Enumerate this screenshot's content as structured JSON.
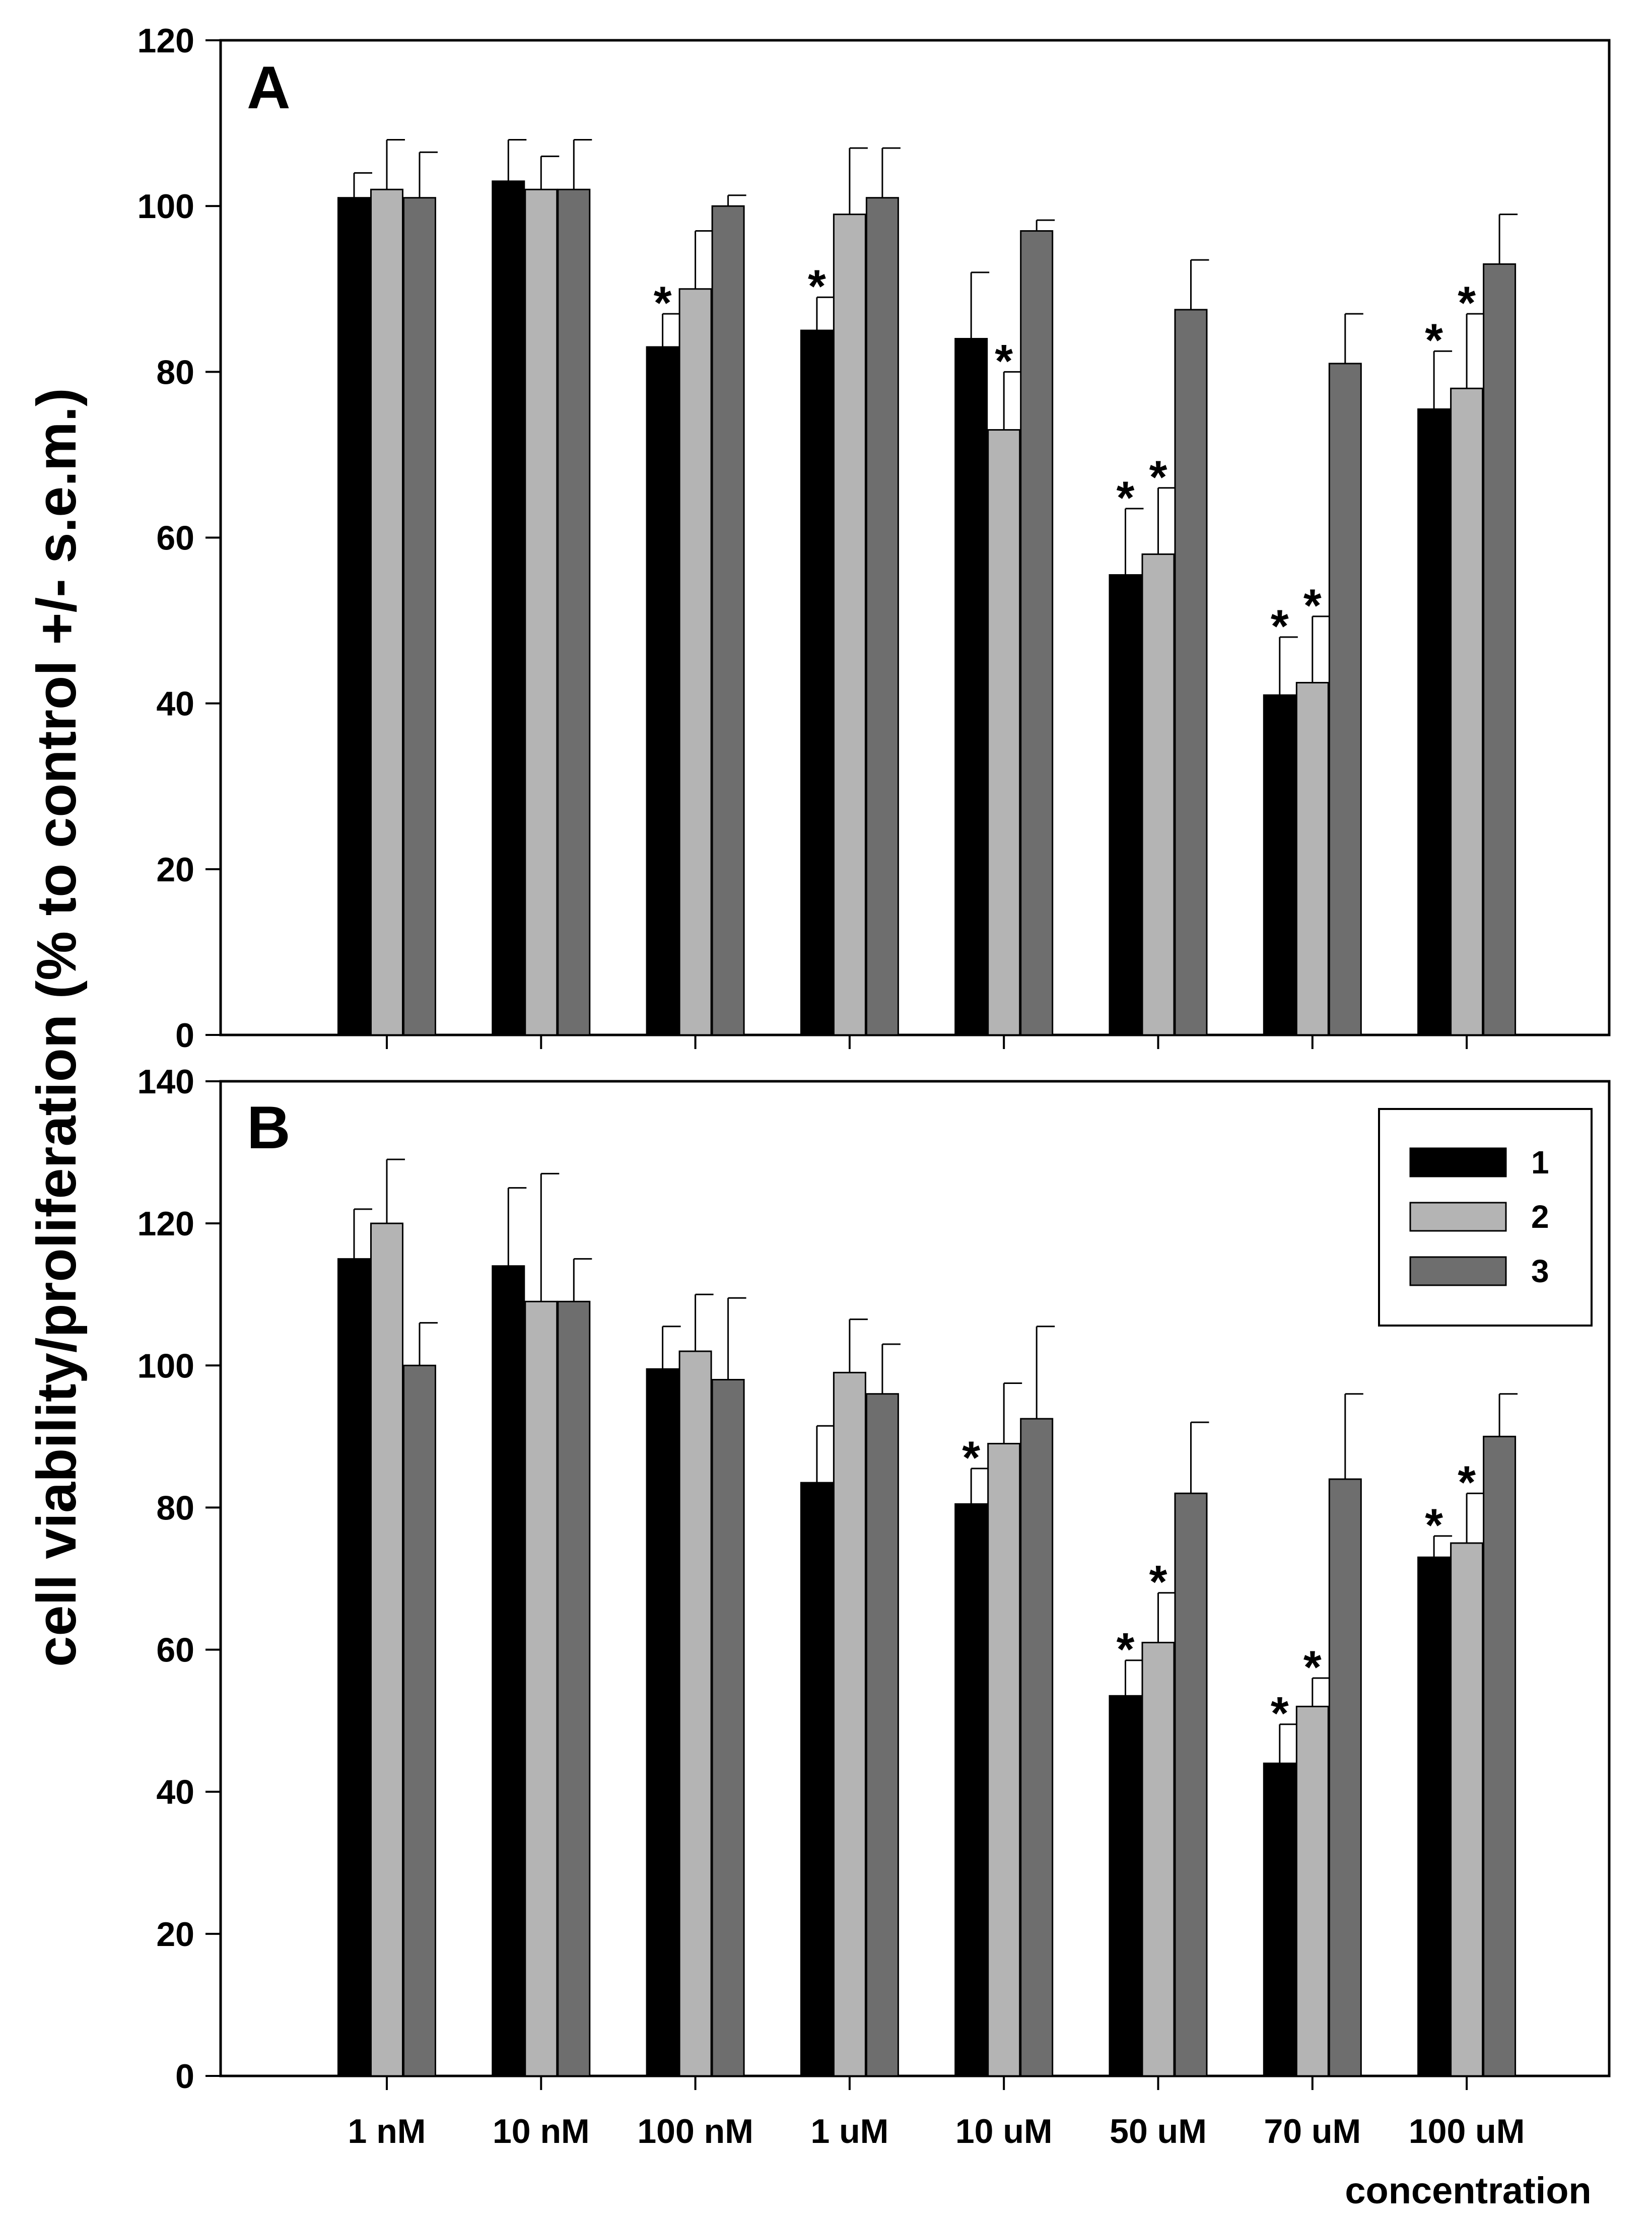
{
  "chart_data": {
    "type": "bar",
    "ylabel": "cell viability/proliferation (% to control +/- s.e.m.)",
    "xlabel": "concentration",
    "categories": [
      "1 nM",
      "10 nM",
      "100 nM",
      "1 uM",
      "10 uM",
      "50 uM",
      "70 uM",
      "100 uM"
    ],
    "legend": {
      "placement": "top-right of panel B",
      "entries": [
        {
          "label": "1",
          "color": "#000000"
        },
        {
          "label": "2",
          "color": "#b4b4b4"
        },
        {
          "label": "3",
          "color": "#6e6e6e"
        }
      ]
    },
    "significance_marker": "*",
    "panels": [
      {
        "label": "A",
        "ylim": [
          0,
          120
        ],
        "yticks": [
          "0",
          "20",
          "40",
          "60",
          "80",
          "100",
          "120"
        ],
        "series": [
          {
            "name": "1",
            "values": [
              101,
              103,
              83,
              85,
              84,
              55.5,
              41,
              75.5
            ],
            "errors": [
              3,
              5,
              4,
              4,
              8,
              8,
              7,
              7
            ],
            "significant": [
              false,
              false,
              true,
              true,
              false,
              true,
              true,
              true
            ]
          },
          {
            "name": "2",
            "values": [
              102,
              102,
              90,
              99,
              73,
              58,
              42.5,
              78
            ],
            "errors": [
              6,
              4,
              7,
              8,
              7,
              8,
              8,
              9
            ],
            "significant": [
              false,
              false,
              false,
              false,
              true,
              true,
              true,
              true
            ]
          },
          {
            "name": "3",
            "values": [
              101,
              102,
              100,
              101,
              97,
              87.5,
              81,
              93
            ],
            "errors": [
              5.5,
              6,
              1.3,
              6,
              1.3,
              6,
              6,
              6
            ],
            "significant": [
              false,
              false,
              false,
              false,
              false,
              false,
              false,
              false
            ]
          }
        ]
      },
      {
        "label": "B",
        "ylim": [
          0,
          140
        ],
        "yticks": [
          "0",
          "20",
          "40",
          "60",
          "80",
          "100",
          "120",
          "140"
        ],
        "series": [
          {
            "name": "1",
            "values": [
              115,
              114,
              99.5,
              83.5,
              80.5,
              53.5,
              44,
              73
            ],
            "errors": [
              7,
              11,
              6,
              8,
              5,
              5,
              5.5,
              3
            ],
            "significant": [
              false,
              false,
              false,
              false,
              true,
              true,
              true,
              true
            ]
          },
          {
            "name": "2",
            "values": [
              120,
              109,
              102,
              99,
              89,
              61,
              52,
              75
            ],
            "errors": [
              9,
              18,
              8,
              7.5,
              8.5,
              7,
              4,
              7
            ],
            "significant": [
              false,
              false,
              false,
              false,
              false,
              true,
              true,
              true
            ]
          },
          {
            "name": "3",
            "values": [
              100,
              109,
              98,
              96,
              92.5,
              82,
              84,
              90
            ],
            "errors": [
              6,
              6,
              11.5,
              7,
              13,
              10,
              12,
              6
            ],
            "significant": [
              false,
              false,
              false,
              false,
              false,
              false,
              false,
              false
            ]
          }
        ]
      }
    ]
  }
}
